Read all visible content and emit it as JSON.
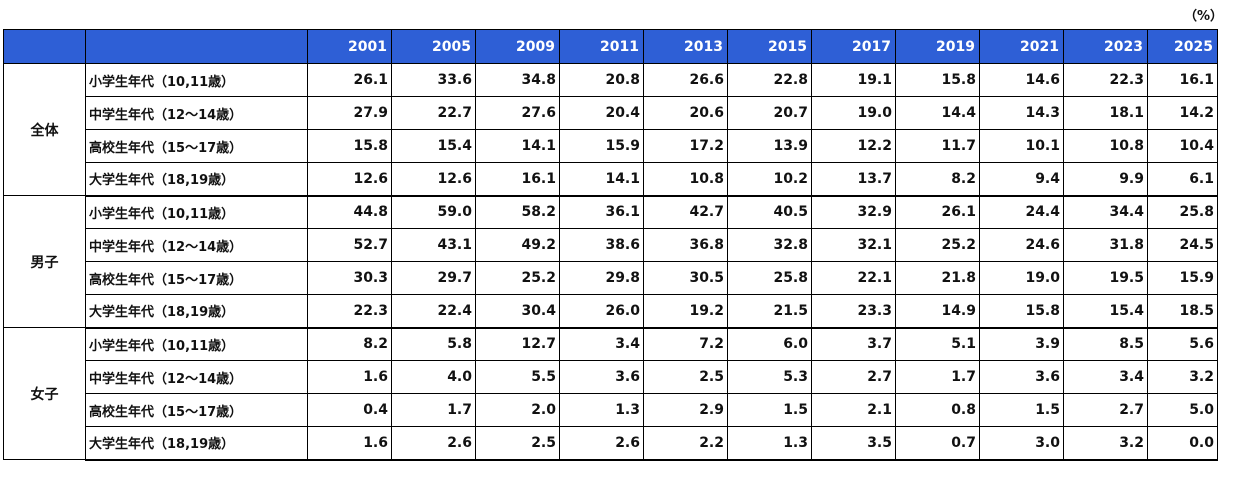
{
  "unit_note": "（%）",
  "chart_data": {
    "type": "table",
    "columns": [
      "2001",
      "2005",
      "2009",
      "2011",
      "2013",
      "2015",
      "2017",
      "2019",
      "2021",
      "2023",
      "2025"
    ],
    "groups": [
      {
        "name": "全体",
        "rows": [
          {
            "label": "小学生年代（10,11歳）",
            "values": [
              "26.1",
              "33.6",
              "34.8",
              "20.8",
              "26.6",
              "22.8",
              "19.1",
              "15.8",
              "14.6",
              "22.3",
              "16.1"
            ]
          },
          {
            "label": "中学生年代（12～14歳）",
            "values": [
              "27.9",
              "22.7",
              "27.6",
              "20.4",
              "20.6",
              "20.7",
              "19.0",
              "14.4",
              "14.3",
              "18.1",
              "14.2"
            ]
          },
          {
            "label": "高校生年代（15～17歳）",
            "values": [
              "15.8",
              "15.4",
              "14.1",
              "15.9",
              "17.2",
              "13.9",
              "12.2",
              "11.7",
              "10.1",
              "10.8",
              "10.4"
            ]
          },
          {
            "label": "大学生年代（18,19歳）",
            "values": [
              "12.6",
              "12.6",
              "16.1",
              "14.1",
              "10.8",
              "10.2",
              "13.7",
              "8.2",
              "9.4",
              "9.9",
              "6.1"
            ]
          }
        ]
      },
      {
        "name": "男子",
        "rows": [
          {
            "label": "小学生年代（10,11歳）",
            "values": [
              "44.8",
              "59.0",
              "58.2",
              "36.1",
              "42.7",
              "40.5",
              "32.9",
              "26.1",
              "24.4",
              "34.4",
              "25.8"
            ]
          },
          {
            "label": "中学生年代（12～14歳）",
            "values": [
              "52.7",
              "43.1",
              "49.2",
              "38.6",
              "36.8",
              "32.8",
              "32.1",
              "25.2",
              "24.6",
              "31.8",
              "24.5"
            ]
          },
          {
            "label": "高校生年代（15～17歳）",
            "values": [
              "30.3",
              "29.7",
              "25.2",
              "29.8",
              "30.5",
              "25.8",
              "22.1",
              "21.8",
              "19.0",
              "19.5",
              "15.9"
            ]
          },
          {
            "label": "大学生年代（18,19歳）",
            "values": [
              "22.3",
              "22.4",
              "30.4",
              "26.0",
              "19.2",
              "21.5",
              "23.3",
              "14.9",
              "15.8",
              "15.4",
              "18.5"
            ]
          }
        ]
      },
      {
        "name": "女子",
        "rows": [
          {
            "label": "小学生年代（10,11歳）",
            "values": [
              "8.2",
              "5.8",
              "12.7",
              "3.4",
              "7.2",
              "6.0",
              "3.7",
              "5.1",
              "3.9",
              "8.5",
              "5.6"
            ]
          },
          {
            "label": "中学生年代（12～14歳）",
            "values": [
              "1.6",
              "4.0",
              "5.5",
              "3.6",
              "2.5",
              "5.3",
              "2.7",
              "1.7",
              "3.6",
              "3.4",
              "3.2"
            ]
          },
          {
            "label": "高校生年代（15～17歳）",
            "values": [
              "0.4",
              "1.7",
              "2.0",
              "1.3",
              "2.9",
              "1.5",
              "2.1",
              "0.8",
              "1.5",
              "2.7",
              "5.0"
            ]
          },
          {
            "label": "大学生年代（18,19歳）",
            "values": [
              "1.6",
              "2.6",
              "2.5",
              "2.6",
              "2.2",
              "1.3",
              "3.5",
              "0.7",
              "3.0",
              "3.2",
              "0.0"
            ]
          }
        ]
      }
    ]
  }
}
